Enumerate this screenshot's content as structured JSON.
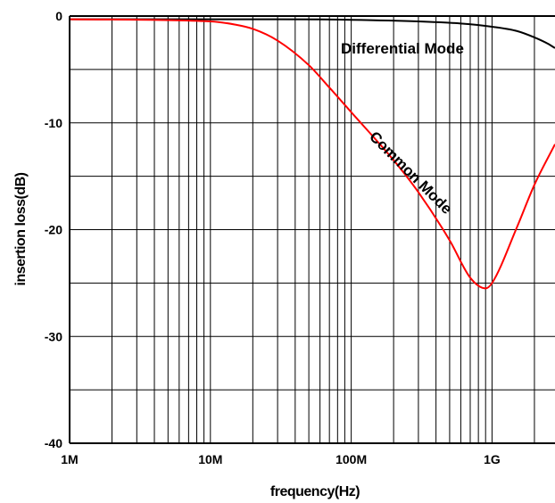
{
  "chart_data": {
    "type": "line",
    "title": "",
    "xlabel": "frequency(Hz)",
    "ylabel": "insertion loss(dB)",
    "x_scale": "log",
    "xlim": [
      1000000,
      2800000000
    ],
    "ylim": [
      -40,
      0
    ],
    "x_ticks": [
      1000000,
      10000000,
      100000000,
      1000000000
    ],
    "x_tick_labels": [
      "1M",
      "10M",
      "100M",
      "1G"
    ],
    "y_ticks": [
      0,
      -10,
      -20,
      -30,
      -40
    ],
    "y_tick_labels": [
      "0",
      "-10",
      "-20",
      "-30",
      "-40"
    ],
    "grid": true,
    "series": [
      {
        "name": "Differential Mode",
        "color": "#000000",
        "x": [
          1000000,
          10000000,
          30000000,
          100000000,
          300000000,
          600000000,
          1000000000,
          1500000000,
          2000000000,
          2500000000,
          2800000000
        ],
        "y": [
          -0.3,
          -0.3,
          -0.3,
          -0.35,
          -0.5,
          -0.7,
          -1.0,
          -1.4,
          -2.0,
          -2.6,
          -3.0
        ]
      },
      {
        "name": "Common Mode",
        "color": "#ff0000",
        "x": [
          1000000,
          10000000,
          15000000,
          20000000,
          30000000,
          50000000,
          70000000,
          100000000,
          200000000,
          300000000,
          500000000,
          700000000,
          900000000,
          1000000000,
          1500000000,
          2000000000,
          2800000000
        ],
        "y": [
          -0.3,
          -0.5,
          -0.8,
          -1.2,
          -2.3,
          -4.6,
          -6.7,
          -9.0,
          -13.5,
          -16.5,
          -21.0,
          -24.5,
          -25.5,
          -25.0,
          -19.8,
          -15.8,
          -12.0
        ]
      }
    ],
    "annotations": [
      {
        "text": "Differential Mode",
        "x": 1000000000,
        "y": -3
      },
      {
        "text": "Common Mode",
        "x": 250000000,
        "y": -15,
        "angle": 45
      }
    ]
  }
}
